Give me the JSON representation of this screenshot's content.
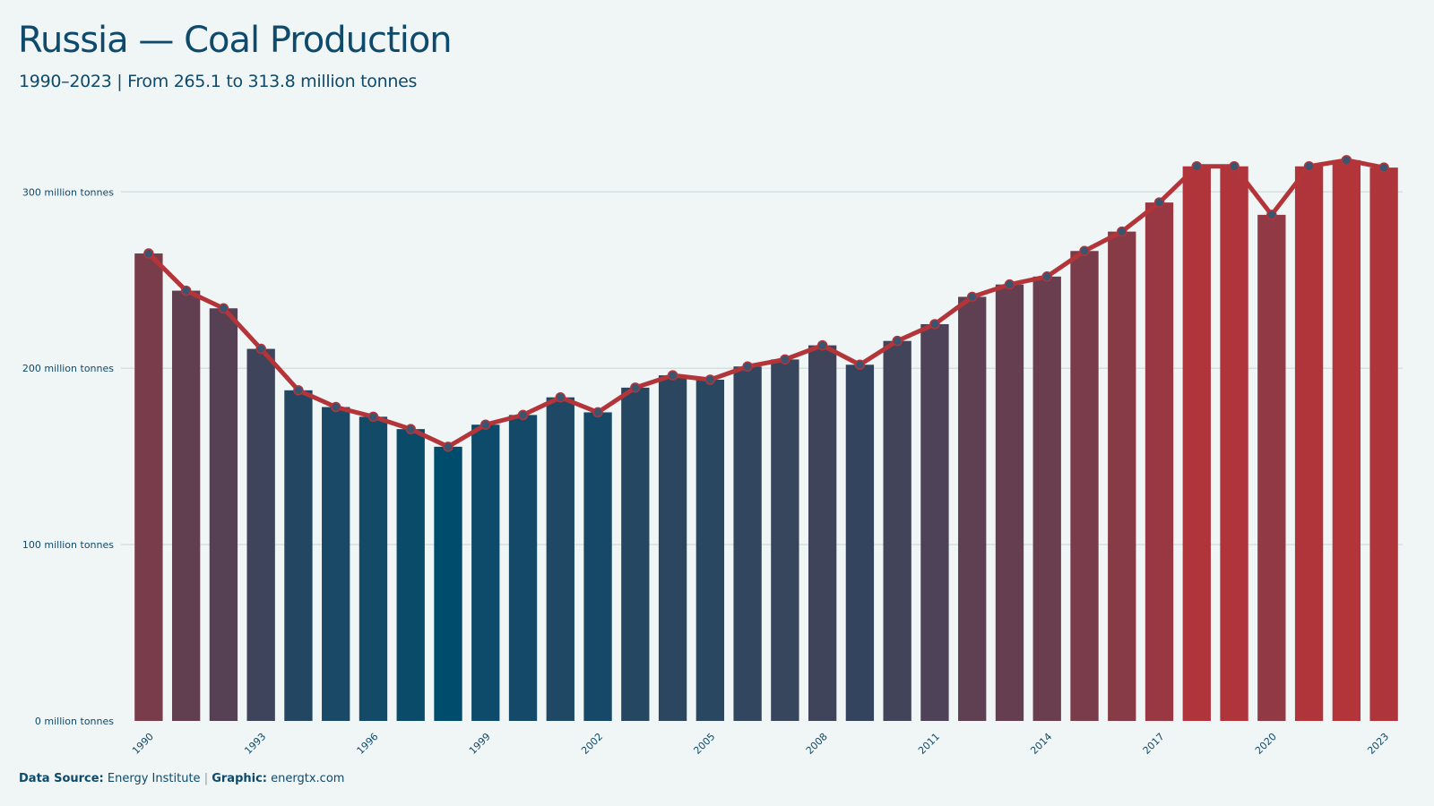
{
  "title": "Russia — Coal Production",
  "subtitle": "1990–2023 | From 265.1 to 313.8 million tonnes",
  "footer": {
    "source_label": "Data Source:",
    "source_value": "Energy Institute",
    "separator": "|",
    "graphic_label": "Graphic:",
    "graphic_value": "energtx.com"
  },
  "colors": {
    "background": "#f0f5f5",
    "low": "#004c6d",
    "high": "#b3353a",
    "line": "#b3353a",
    "marker": "#3b5470",
    "text": "#0e4a6b",
    "grid": "#d5e0e0"
  },
  "chart_data": {
    "type": "bar",
    "overlay": "line",
    "x": [
      1990,
      1991,
      1992,
      1993,
      1994,
      1995,
      1996,
      1997,
      1998,
      1999,
      2000,
      2001,
      2002,
      2003,
      2004,
      2005,
      2006,
      2007,
      2008,
      2009,
      2010,
      2011,
      2012,
      2013,
      2014,
      2015,
      2016,
      2017,
      2018,
      2019,
      2020,
      2021,
      2022,
      2023
    ],
    "values": [
      265.1,
      244,
      234,
      211,
      187.5,
      178,
      172.5,
      165.5,
      155.5,
      168,
      173.5,
      183.5,
      175,
      189,
      196,
      193.5,
      201,
      205,
      213,
      202,
      215.5,
      225,
      240.5,
      247.5,
      252,
      266.5,
      277.5,
      294,
      314.5,
      314.5,
      287,
      314.5,
      318,
      313.8
    ],
    "unit": "million tonnes",
    "ylim": [
      0,
      330
    ],
    "y_ticks": [
      {
        "value": 0,
        "label": "0 million tonnes"
      },
      {
        "value": 100,
        "label": "100 million tonnes"
      },
      {
        "value": 200,
        "label": "200 million tonnes"
      },
      {
        "value": 300,
        "label": "300 million tonnes"
      }
    ],
    "x_ticks": [
      "1990",
      "1993",
      "1996",
      "1999",
      "2002",
      "2005",
      "2008",
      "2011",
      "2014",
      "2017",
      "2020",
      "2023"
    ],
    "grid": true,
    "legend": "none"
  }
}
